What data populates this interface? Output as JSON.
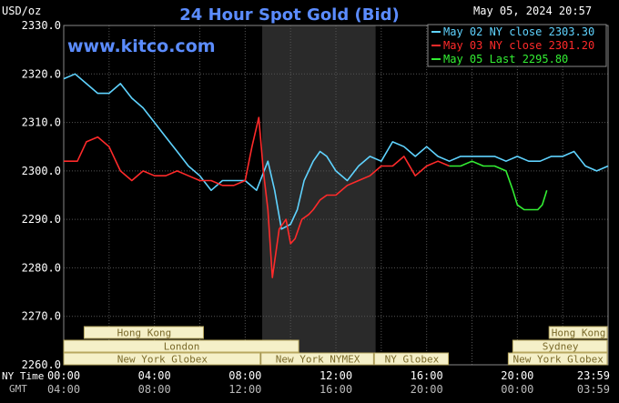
{
  "header": {
    "units": "USD/oz",
    "title": "24 Hour Spot Gold (Bid)",
    "timestamp": "May 05, 2024 20:57",
    "watermark": "www.kitco.com"
  },
  "colors": {
    "background": "#000000",
    "title": "#5b8cff",
    "axis_text": "#ffffff",
    "grid": "#555555",
    "night_band": "#2a2a2a",
    "market_bar": "#f5f0c8",
    "market_text": "#7a6a2a",
    "may02": "#5fd3ff",
    "may03": "#ff2a2a",
    "may05": "#33ee33"
  },
  "chart_data": {
    "type": "line",
    "title": "24 Hour Spot Gold (Bid)",
    "ylabel": "USD/oz",
    "xlabel": "",
    "ylim": [
      2260,
      2330
    ],
    "xlim": [
      0,
      24
    ],
    "grid": true,
    "legend_placement": "top-right",
    "shaded_region": [
      8.75,
      13.75
    ],
    "y_ticks": [
      "2330.0",
      "2320.0",
      "2310.0",
      "2300.0",
      "2290.0",
      "2280.0",
      "2270.0",
      "2260.0"
    ],
    "y_tick_values": [
      2330,
      2320,
      2310,
      2300,
      2290,
      2280,
      2270,
      2260
    ],
    "x_tick_values": [
      0,
      4,
      8,
      12,
      16,
      20,
      23.983
    ],
    "x_ticks_ny": [
      "00:00",
      "04:00",
      "08:00",
      "12:00",
      "16:00",
      "20:00",
      "23:59"
    ],
    "x_ticks_gmt": [
      "04:00",
      "08:00",
      "12:00",
      "16:00",
      "20:00",
      "00:00",
      "03:59"
    ],
    "x_row_labels": [
      "NY Time",
      "GMT"
    ],
    "legend": [
      "May 02 NY close 2303.30",
      "May 03 NY close 2301.20",
      "May 05 Last 2295.80"
    ],
    "series": [
      {
        "name": "May 02 NY close 2303.30",
        "color": "#5fd3ff",
        "x": [
          0,
          0.5,
          1,
          1.5,
          2,
          2.5,
          3,
          3.5,
          4,
          4.5,
          5,
          5.5,
          6,
          6.5,
          7,
          7.5,
          8,
          8.5,
          9,
          9.3,
          9.6,
          10,
          10.3,
          10.6,
          11,
          11.3,
          11.6,
          12,
          12.5,
          13,
          13.5,
          14,
          14.5,
          15,
          15.5,
          16,
          16.5,
          17,
          17.5,
          18,
          18.5,
          19,
          19.5,
          20,
          20.5,
          21,
          21.5,
          22,
          22.5,
          23,
          23.5,
          24
        ],
        "values": [
          2319,
          2320,
          2318,
          2316,
          2316,
          2318,
          2315,
          2313,
          2310,
          2307,
          2304,
          2301,
          2299,
          2296,
          2298,
          2298,
          2298,
          2296,
          2302,
          2296,
          2288,
          2289,
          2292,
          2298,
          2302,
          2304,
          2303,
          2300,
          2298,
          2301,
          2303,
          2302,
          2306,
          2305,
          2303,
          2305,
          2303,
          2302,
          2303,
          2303,
          2303,
          2303,
          2302,
          2303,
          2302,
          2302,
          2303,
          2303,
          2304,
          2301,
          2300,
          2301
        ]
      },
      {
        "name": "May 03 NY close 2301.20",
        "color": "#ff2a2a",
        "x": [
          0,
          0.3,
          0.6,
          1,
          1.5,
          2,
          2.5,
          3,
          3.5,
          4,
          4.5,
          5,
          5.5,
          6,
          6.5,
          7,
          7.5,
          8,
          8.3,
          8.6,
          8.8,
          9,
          9.2,
          9.5,
          9.8,
          10,
          10.2,
          10.5,
          10.8,
          11,
          11.3,
          11.6,
          12,
          12.5,
          13,
          13.5,
          14,
          14.5,
          15,
          15.5,
          16,
          16.5,
          17
        ],
        "values": [
          2302,
          2302,
          2302,
          2306,
          2307,
          2305,
          2300,
          2298,
          2300,
          2299,
          2299,
          2300,
          2299,
          2298,
          2298,
          2297,
          2297,
          2298,
          2305,
          2311,
          2300,
          2292,
          2278,
          2288,
          2290,
          2285,
          2286,
          2290,
          2291,
          2292,
          2294,
          2295,
          2295,
          2297,
          2298,
          2299,
          2301,
          2301,
          2303,
          2299,
          2301,
          2302,
          2301
        ]
      },
      {
        "name": "May 05 Last 2295.80",
        "color": "#33ee33",
        "x": [
          17,
          17.5,
          18,
          18.5,
          19,
          19.5,
          19.8,
          20,
          20.3,
          20.6,
          20.9,
          21.1,
          21.3
        ],
        "values": [
          2301,
          2301,
          2302,
          2301,
          2301,
          2300,
          2296,
          2293,
          2292,
          2292,
          2292,
          2293,
          2296
        ]
      }
    ],
    "market_sessions": [
      {
        "name": "Hong Kong",
        "row": 0,
        "start": 0.9,
        "end": 6.2
      },
      {
        "name": "Hong Kong",
        "row": 0,
        "start": 21.4,
        "end": 24
      },
      {
        "name": "London",
        "row": 1,
        "start": 0,
        "end": 10.4
      },
      {
        "name": "Sydney",
        "row": 1,
        "start": 19.8,
        "end": 24
      },
      {
        "name": "New York Globex",
        "row": 2,
        "start": 0,
        "end": 8.7
      },
      {
        "name": "New York NYMEX",
        "row": 2,
        "start": 8.7,
        "end": 13.7
      },
      {
        "name": "NY Globex",
        "row": 2,
        "start": 13.7,
        "end": 17.0
      },
      {
        "name": "New York Globex",
        "row": 2,
        "start": 19.6,
        "end": 24
      }
    ]
  }
}
